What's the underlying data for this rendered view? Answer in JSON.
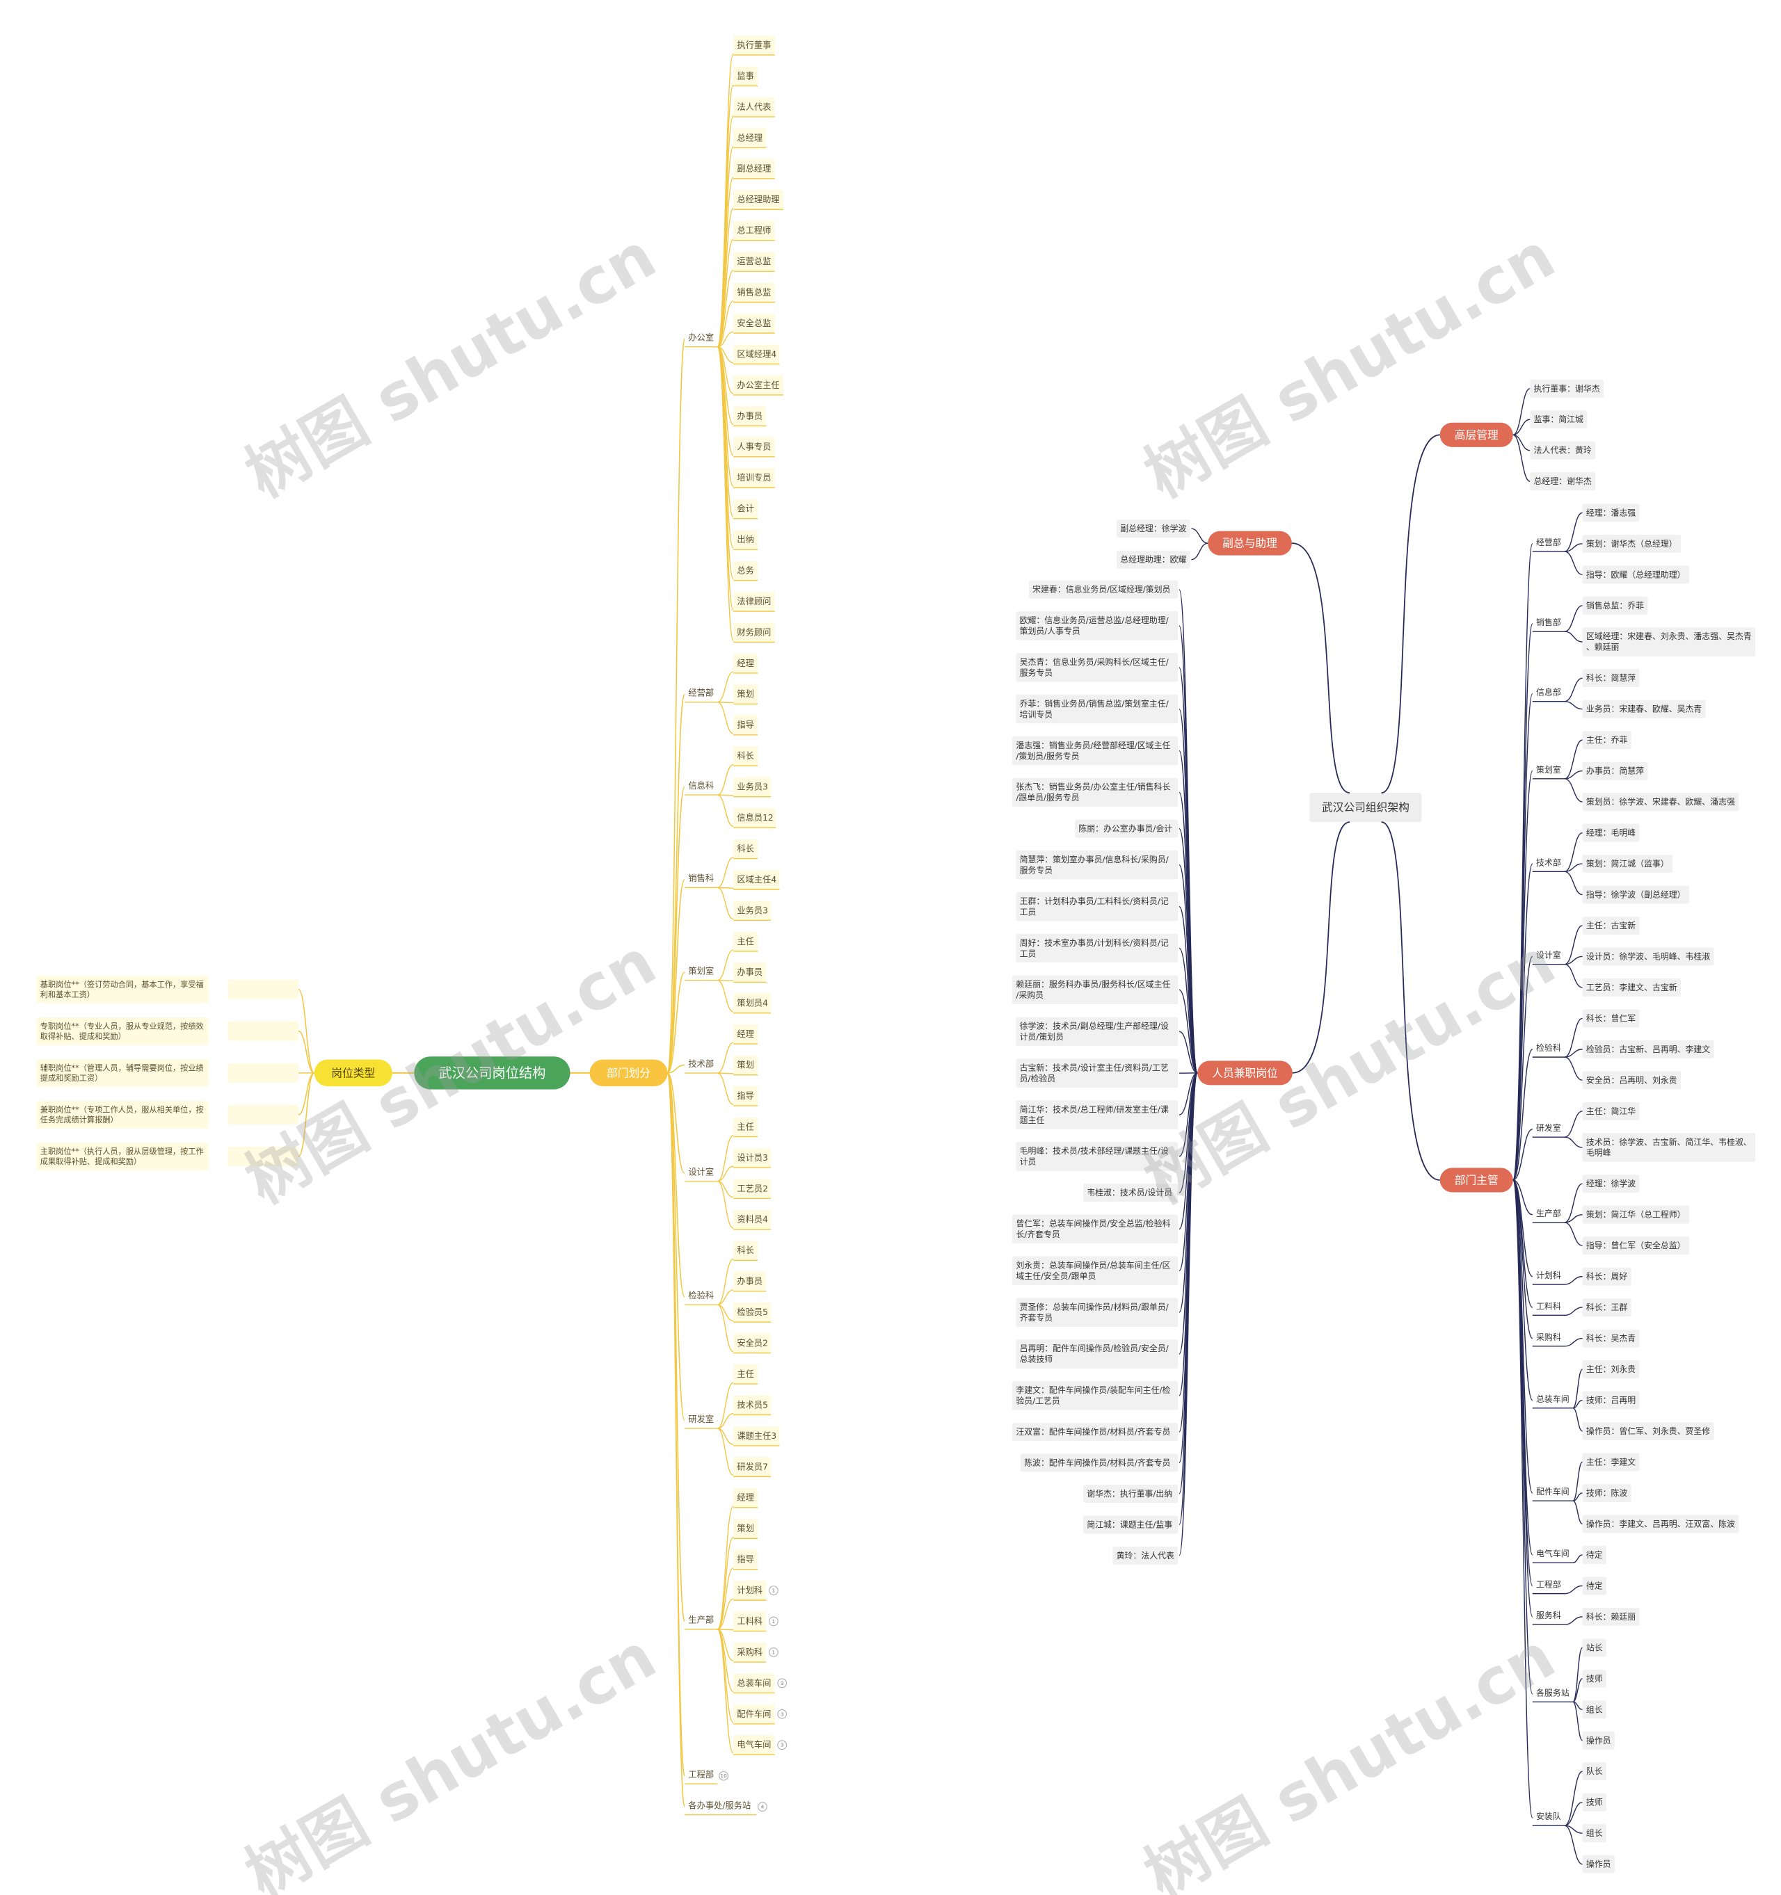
{
  "left_map": {
    "root": "武汉公司岗位结构",
    "types": {
      "label": "岗位类型",
      "items": [
        "基职岗位**（签订劳动合同，基本工作，享受福利和基本工资）",
        "专职岗位**（专业人员，服从专业规范，按绩效取得补贴、提成和奖励）",
        "辅职岗位**（管理人员，辅导需要岗位，按业绩提成和奖励工资）",
        "兼职岗位**（专项工作人员，服从相关单位，按任务完成绩计算报酬）",
        "主职岗位**（执行人员，服从层级管理，按工作成果取得补贴、提成和奖励）"
      ]
    },
    "departments": {
      "label": "部门划分",
      "items": [
        {
          "label": "办公室",
          "children": [
            "执行董事",
            "监事",
            "法人代表",
            "总经理",
            "副总经理",
            "总经理助理",
            "总工程师",
            "运营总监",
            "销售总监",
            "安全总监",
            "区域经理4",
            "办公室主任",
            "办事员",
            "人事专员",
            "培训专员",
            "会计",
            "出纳",
            "总务",
            "法律顾问",
            "财务顾问"
          ]
        },
        {
          "label": "经营部",
          "children": [
            "经理",
            "策划",
            "指导"
          ]
        },
        {
          "label": "信息科",
          "children": [
            "科长",
            "业务员3",
            "信息员12"
          ]
        },
        {
          "label": "销售科",
          "children": [
            "科长",
            "区域主任4",
            "业务员3"
          ]
        },
        {
          "label": "策划室",
          "children": [
            "主任",
            "办事员",
            "策划员4"
          ]
        },
        {
          "label": "技术部",
          "children": [
            "经理",
            "策划",
            "指导"
          ]
        },
        {
          "label": "设计室",
          "children": [
            "主任",
            "设计员3",
            "工艺员2",
            "资料员4"
          ]
        },
        {
          "label": "检验科",
          "children": [
            "科长",
            "办事员",
            "检验员5",
            "安全员2"
          ]
        },
        {
          "label": "研发室",
          "children": [
            "主任",
            "技术员5",
            "课题主任3",
            "研发员7"
          ]
        },
        {
          "label": "生产部",
          "children": [
            "经理",
            "策划",
            "指导",
            {
              "label": "计划科",
              "count": 1
            },
            {
              "label": "工料科",
              "count": 1
            },
            {
              "label": "采购科",
              "count": 1
            },
            {
              "label": "总装车间",
              "count": 3
            },
            {
              "label": "配件车间",
              "count": 3
            },
            {
              "label": "电气车间",
              "count": 3
            }
          ]
        },
        {
          "label": "工程部",
          "count": 10
        },
        {
          "label": "各办事处/服务站",
          "count": 4
        }
      ]
    }
  },
  "right_map": {
    "root": "武汉公司组织架构",
    "deputies": {
      "label": "副总与助理",
      "items": [
        "副总经理：徐学波",
        "总经理助理：欧耀"
      ]
    },
    "part_time": {
      "label": "人员兼职岗位",
      "items": [
        "宋建春：信息业务员/区域经理/策划员",
        "欧耀：信息业务员/运营总监/总经理助理/策划员/人事专员",
        "吴杰青：信息业务员/采购科长/区域主任/服务专员",
        "乔菲：销售业务员/销售总监/策划室主任/培训专员",
        "潘志强：销售业务员/经营部经理/区域主任/策划员/服务专员",
        "张杰飞：销售业务员/办公室主任/销售科长/跟单员/服务专员",
        "陈丽：办公室办事员/会计",
        "简慧萍：策划室办事员/信息科长/采购员/服务专员",
        "王群：计划科办事员/工料科长/资料员/记工员",
        "周好：技术室办事员/计划科长/资料员/记工员",
        "赖廷丽：服务科办事员/服务科长/区域主任/采购员",
        "徐学波：技术员/副总经理/生产部经理/设计员/策划员",
        "古宝新：技术员/设计室主任/资料员/工艺员/检验员",
        "简江华：技术员/总工程师/研发室主任/课题主任",
        "毛明峰：技术员/技术部经理/课题主任/设计员",
        "韦桂淑：技术员/设计员",
        "曾仁军：总装车间操作员/安全总监/检验科长/齐套专员",
        "刘永贵：总装车间操作员/总装车间主任/区域主任/安全员/跟单员",
        "贾圣修：总装车间操作员/材料员/跟单员/齐套专员",
        "吕再明：配件车间操作员/检验员/安全员/总装技师",
        "李建文：配件车间操作员/装配车间主任/检验员/工艺员",
        "汪双富：配件车间操作员/材料员/齐套专员",
        "陈波：配件车间操作员/材料员/齐套专员",
        "谢华杰：执行董事/出纳",
        "简江城：课题主任/监事",
        "黄玲：法人代表"
      ]
    },
    "top": {
      "label": "高层管理",
      "items": [
        "执行董事：谢华杰",
        "监事：简江城",
        "法人代表：黄玲",
        "总经理：谢华杰"
      ]
    },
    "heads": {
      "label": "部门主管",
      "items": [
        {
          "label": "经营部",
          "children": [
            "经理：潘志强",
            "策划：谢华杰（总经理）",
            "指导：欧耀（总经理助理）"
          ]
        },
        {
          "label": "销售部",
          "children": [
            "销售总监：乔菲",
            "区域经理：宋建春、刘永贵、潘志强、吴杰青、赖廷丽"
          ]
        },
        {
          "label": "信息部",
          "children": [
            "科长：简慧萍",
            "业务员：宋建春、欧耀、吴杰青"
          ]
        },
        {
          "label": "策划室",
          "children": [
            "主任：乔菲",
            "办事员：简慧萍",
            "策划员：徐学波、宋建春、欧耀、潘志强"
          ]
        },
        {
          "label": "技术部",
          "children": [
            "经理：毛明峰",
            "策划：简江城（监事）",
            "指导：徐学波（副总经理）"
          ]
        },
        {
          "label": "设计室",
          "children": [
            "主任：古宝新",
            "设计员：徐学波、毛明峰、韦桂淑",
            "工艺员：李建文、古宝新"
          ]
        },
        {
          "label": "检验科",
          "children": [
            "科长：曾仁军",
            "检验员：古宝新、吕再明、李建文",
            "安全员：吕再明、刘永贵"
          ]
        },
        {
          "label": "研发室",
          "children": [
            "主任：简江华",
            "技术员：徐学波、古宝新、简江华、韦桂淑、毛明峰"
          ]
        },
        {
          "label": "生产部",
          "children": [
            "经理：徐学波",
            "策划：简江华（总工程师）",
            "指导：曾仁军（安全总监）"
          ]
        },
        {
          "label": "计划科",
          "children": [
            "科长：周好"
          ]
        },
        {
          "label": "工料科",
          "children": [
            "科长：王群"
          ]
        },
        {
          "label": "采购科",
          "children": [
            "科长：吴杰青"
          ]
        },
        {
          "label": "总装车间",
          "children": [
            "主任：刘永贵",
            "技师：吕再明",
            "操作员：曾仁军、刘永贵、贾圣修"
          ]
        },
        {
          "label": "配件车间",
          "children": [
            "主任：李建文",
            "技师：陈波",
            "操作员：李建文、吕再明、汪双富、陈波"
          ]
        },
        {
          "label": "电气车间",
          "children": [
            "待定"
          ]
        },
        {
          "label": "工程部",
          "children": [
            "待定"
          ]
        },
        {
          "label": "服务科",
          "children": [
            "科长：赖廷丽"
          ]
        },
        {
          "label": "各服务站",
          "children": [
            "站长",
            "技师",
            "组长",
            "操作员"
          ]
        },
        {
          "label": "安装队",
          "children": [
            "队长",
            "技师",
            "组长",
            "操作员"
          ]
        }
      ]
    }
  },
  "watermark": "树图 shutu.cn"
}
